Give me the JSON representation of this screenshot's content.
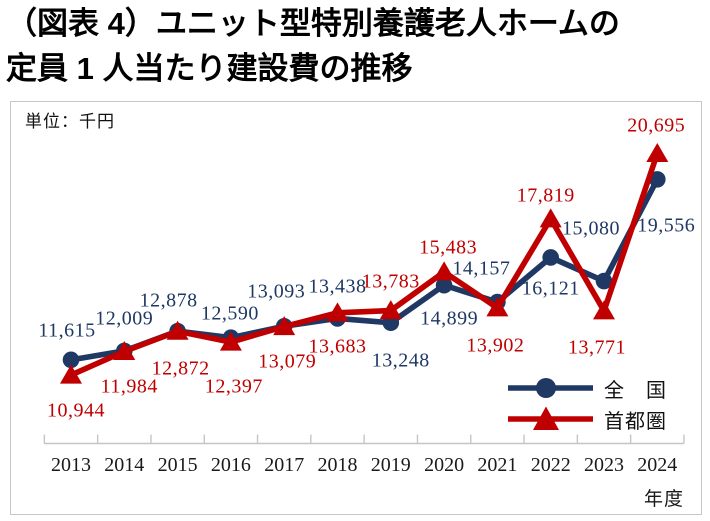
{
  "title": {
    "line1": "（図表 4）ユニット型特別養護老人ホームの",
    "line2": "定員 1 人当たり建設費の推移"
  },
  "panel": {
    "unit_label": "単位：千円"
  },
  "colors": {
    "national": "#1F3864",
    "metro": "#C00000",
    "axis": "#c6c6c6",
    "panel_border": "#c7c7c7",
    "text": "#000000"
  },
  "chart_data": {
    "type": "line",
    "title": "（図表 4）ユニット型特別養護老人ホームの定員 1 人当たり建設費の推移",
    "unit": "千円",
    "x": [
      2013,
      2014,
      2015,
      2016,
      2017,
      2018,
      2019,
      2020,
      2021,
      2022,
      2023,
      2024
    ],
    "xlabel": "年度",
    "ylim": [
      8000,
      23000
    ],
    "grid": false,
    "legend_position": "bottom-right",
    "series": [
      {
        "name": "全国",
        "label": "全　国",
        "marker": "circle",
        "color": "#1F3864",
        "values": [
          11615,
          12009,
          12878,
          12590,
          13093,
          13438,
          13248,
          14899,
          14157,
          16121,
          15080,
          19556
        ],
        "labels": [
          "11,615",
          "12,009",
          "12,878",
          "12,590",
          "13,093",
          "13,438",
          "13,248",
          "14,899",
          "14,157",
          "16,121",
          "15,080",
          "19,556"
        ],
        "label_offsets": [
          [
            -4,
            -29
          ],
          [
            0,
            -32
          ],
          [
            -9,
            -30
          ],
          [
            -1,
            -24
          ],
          [
            -8,
            -34
          ],
          [
            0,
            -31
          ],
          [
            10,
            38
          ],
          [
            5,
            34
          ],
          [
            -16,
            -33
          ],
          [
            0,
            32
          ],
          [
            -13,
            -52
          ],
          [
            9,
            47
          ]
        ]
      },
      {
        "name": "首都圏",
        "label": "首都圏",
        "marker": "triangle",
        "color": "#C00000",
        "values": [
          10944,
          11984,
          12872,
          12397,
          13079,
          13683,
          13783,
          15483,
          13902,
          17819,
          13771,
          20695
        ],
        "labels": [
          "10,944",
          "11,984",
          "12,872",
          "12,397",
          "13,079",
          "13,683",
          "13,783",
          "15,483",
          "13,902",
          "17,819",
          "13,771",
          "20,695"
        ],
        "label_offsets": [
          [
            5,
            36
          ],
          [
            5,
            36
          ],
          [
            3,
            38
          ],
          [
            3,
            45
          ],
          [
            3,
            35
          ],
          [
            0,
            34
          ],
          [
            0,
            -29
          ],
          [
            4,
            -24
          ],
          [
            -2,
            38
          ],
          [
            -5,
            -23
          ],
          [
            -7,
            37
          ],
          [
            -1,
            -27
          ]
        ]
      }
    ]
  }
}
